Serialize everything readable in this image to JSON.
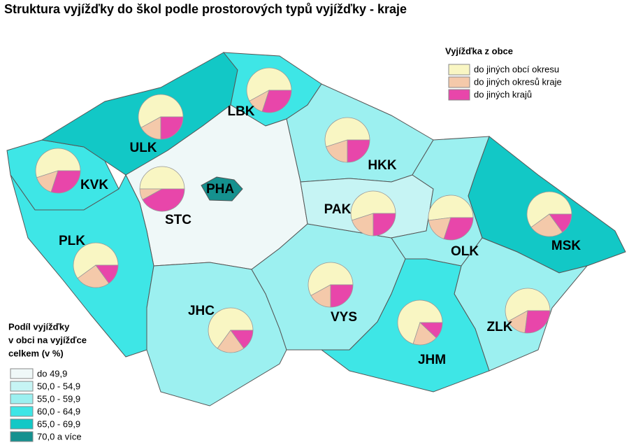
{
  "title": "Struktura vyjížďky do škol podle prostorových typů vyjížďky - kraje",
  "pie_legend": {
    "title": "Vyjížďka z obce",
    "items": [
      {
        "label": "do jiných obcí okresu",
        "color": "#f9f6c3"
      },
      {
        "label": "do jiných okresů kraje",
        "color": "#f4c9aa"
      },
      {
        "label": "do jiných krajů",
        "color": "#e846aa"
      }
    ]
  },
  "class_legend": {
    "title": [
      "Podíl vyjížďky",
      "v obci na vyjížďce",
      "celkem (v %)"
    ],
    "classes": [
      {
        "label": "do 49,9",
        "color": "#eff8f8"
      },
      {
        "label": "50,0 - 54,9",
        "color": "#c6f4f4"
      },
      {
        "label": "55,0 - 59,9",
        "color": "#9cf0f0"
      },
      {
        "label": "60,0 - 64,9",
        "color": "#3ee6e6"
      },
      {
        "label": "65,0 - 69,9",
        "color": "#12c8c6"
      },
      {
        "label": "70,0  a více",
        "color": "#15918f"
      }
    ]
  },
  "regions": [
    {
      "code": "KVK",
      "color": "#3ee6e6",
      "pie": [
        55,
        15,
        30
      ]
    },
    {
      "code": "ULK",
      "color": "#12c8c6",
      "pie": [
        58,
        17,
        25
      ]
    },
    {
      "code": "LBK",
      "color": "#3ee6e6",
      "pie": [
        58,
        12,
        30
      ]
    },
    {
      "code": "HKK",
      "color": "#9cf0f0",
      "pie": [
        55,
        20,
        25
      ]
    },
    {
      "code": "STC",
      "color": "#eff8f8",
      "pie": [
        50,
        8,
        42
      ]
    },
    {
      "code": "PHA",
      "color": "#15918f"
    },
    {
      "code": "PLK",
      "color": "#3ee6e6",
      "pie": [
        60,
        25,
        15
      ]
    },
    {
      "code": "JHC",
      "color": "#9cf0f0",
      "pie": [
        65,
        20,
        15
      ]
    },
    {
      "code": "VYS",
      "color": "#9cf0f0",
      "pie": [
        58,
        17,
        25
      ]
    },
    {
      "code": "PAK",
      "color": "#c6f4f4",
      "pie": [
        55,
        20,
        25
      ]
    },
    {
      "code": "OLK",
      "color": "#9cf0f0",
      "pie": [
        52,
        18,
        30
      ]
    },
    {
      "code": "MSK",
      "color": "#12c8c6",
      "pie": [
        60,
        25,
        15
      ]
    },
    {
      "code": "ZLK",
      "color": "#9cf0f0",
      "pie": [
        58,
        15,
        27
      ]
    },
    {
      "code": "JHM",
      "color": "#3ee6e6",
      "pie": [
        70,
        18,
        12
      ]
    }
  ]
}
